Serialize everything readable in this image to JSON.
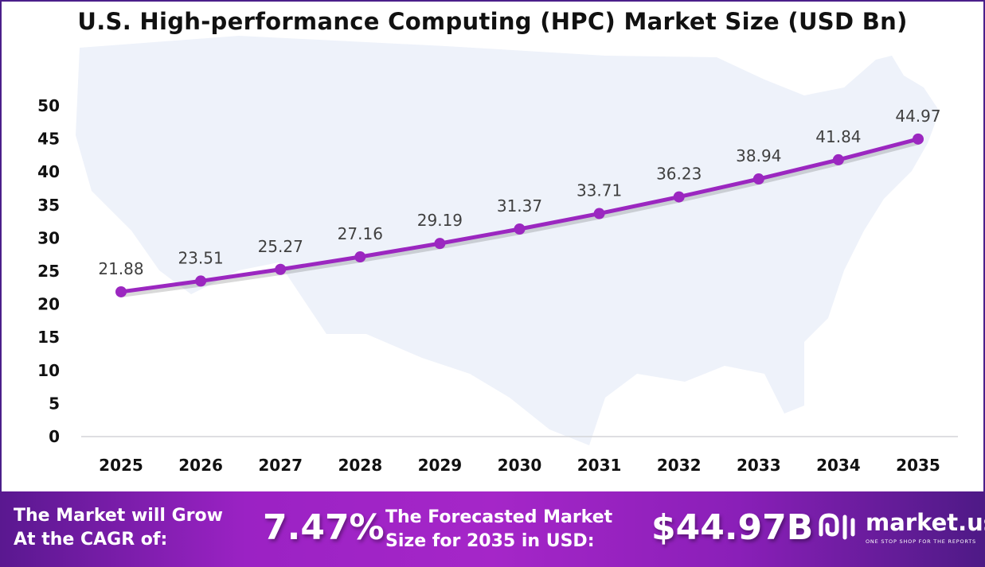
{
  "chart_data": {
    "type": "line",
    "title": "U.S. High-performance Computing (HPC) Market Size (USD Bn)",
    "xlabel": "",
    "ylabel": "",
    "categories": [
      "2025",
      "2026",
      "2027",
      "2028",
      "2029",
      "2030",
      "2031",
      "2032",
      "2033",
      "2034",
      "2035"
    ],
    "values": [
      21.88,
      23.51,
      25.27,
      27.16,
      29.19,
      31.37,
      33.71,
      36.23,
      38.94,
      41.84,
      44.97
    ],
    "data_labels": [
      "21.88",
      "23.51",
      "25.27",
      "27.16",
      "29.19",
      "31.37",
      "33.71",
      "36.23",
      "38.94",
      "41.84",
      "44.97"
    ],
    "ylim": [
      0,
      50
    ],
    "yticks": [
      "0",
      "5",
      "10",
      "15",
      "20",
      "25",
      "30",
      "35",
      "40",
      "45",
      "50"
    ],
    "grid": false,
    "line_color": "#9b27c0",
    "background": "US map silhouette"
  },
  "banner": {
    "cagr_label_line1": "The Market will Grow",
    "cagr_label_line2": "At the CAGR of:",
    "cagr_value": "7.47%",
    "forecast_label_line1": "The Forecasted Market",
    "forecast_label_line2": "Size for 2035 in USD:",
    "forecast_value": "$44.97B",
    "logo_name": "market.us",
    "logo_tagline": "ONE STOP SHOP FOR THE REPORTS"
  }
}
